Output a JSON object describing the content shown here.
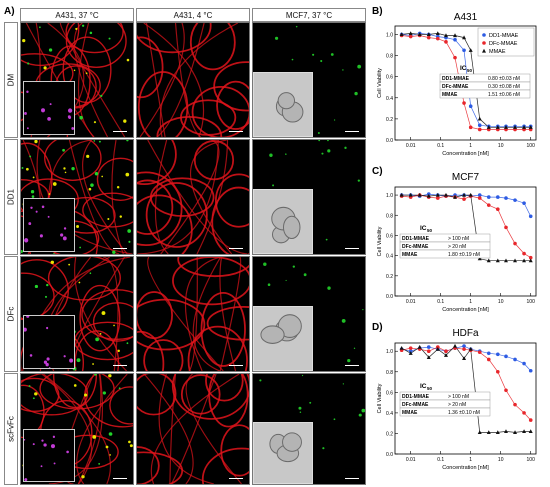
{
  "panel_a": {
    "label": "A)",
    "columns": [
      "A431, 37 °C",
      "A431, 4 °C",
      "MCF7, 37 °C"
    ],
    "rows": [
      "DM",
      "DD1",
      "DFc",
      "scFvFc"
    ]
  },
  "panel_labels": {
    "b": "B)",
    "c": "C)",
    "d": "D)"
  },
  "chart_data": [
    {
      "type": "scatter",
      "title": "A431",
      "xlabel": "Concentration [nM]",
      "ylabel": "Cell Viability",
      "xscale": "log",
      "xlim": [
        0.003,
        150
      ],
      "ylim": [
        0,
        1.08
      ],
      "xticks": [
        "0.01",
        "0.1",
        "1",
        "10",
        "100"
      ],
      "yticks": [
        "0.0",
        "0.2",
        "0.4",
        "0.6",
        "0.8",
        "1.0"
      ],
      "x": [
        0.005,
        0.01,
        0.02,
        0.04,
        0.08,
        0.15,
        0.3,
        0.6,
        1,
        2,
        4,
        8,
        15,
        30,
        60,
        100
      ],
      "legend_position": "top-right",
      "series": [
        {
          "name": "DD1-MMAE",
          "color": "#2d5be3",
          "marker": "circle",
          "values": [
            1.0,
            0.99,
            1.01,
            1.0,
            0.98,
            0.97,
            0.95,
            0.85,
            0.32,
            0.14,
            0.13,
            0.13,
            0.13,
            0.13,
            0.13,
            0.13
          ]
        },
        {
          "name": "DFc-MMAE",
          "color": "#e8262b",
          "marker": "circle",
          "values": [
            0.99,
            0.98,
            0.99,
            0.97,
            0.96,
            0.93,
            0.78,
            0.35,
            0.12,
            0.1,
            0.1,
            0.1,
            0.1,
            0.1,
            0.1,
            0.1
          ]
        },
        {
          "name": "MMAE",
          "color": "#111111",
          "marker": "triangle",
          "values": [
            1.0,
            1.01,
            1.0,
            1.0,
            1.01,
            0.99,
            0.99,
            0.97,
            0.85,
            0.2,
            0.12,
            0.12,
            0.12,
            0.12,
            0.12,
            0.12
          ]
        }
      ],
      "ic50_table": {
        "header": "IC",
        "header_sub": "50",
        "rows": [
          [
            "DD1-MMAE",
            "0.80 ±0.03 nM"
          ],
          [
            "DFc-MMAE",
            "0.30 ±0.08 nM"
          ],
          [
            "MMAE",
            "1.51 ±0.06 nM"
          ]
        ]
      }
    },
    {
      "type": "scatter",
      "title": "MCF7",
      "xlabel": "Concentration [nM]",
      "ylabel": "Cell Viability",
      "xscale": "log",
      "xlim": [
        0.003,
        150
      ],
      "ylim": [
        0,
        1.08
      ],
      "xticks": [
        "0.01",
        "0.1",
        "1",
        "10",
        "100"
      ],
      "yticks": [
        "0.0",
        "0.2",
        "0.4",
        "0.6",
        "0.8",
        "1.0"
      ],
      "x": [
        0.005,
        0.01,
        0.02,
        0.04,
        0.08,
        0.15,
        0.3,
        0.6,
        1,
        2,
        4,
        8,
        15,
        30,
        60,
        100
      ],
      "series": [
        {
          "name": "DD1-MMAE",
          "color": "#2d5be3",
          "marker": "circle",
          "values": [
            1.0,
            1.0,
            0.99,
            1.01,
            1.0,
            0.99,
            1.0,
            1.0,
            0.99,
            1.0,
            0.98,
            0.98,
            0.97,
            0.95,
            0.92,
            0.79
          ]
        },
        {
          "name": "DFc-MMAE",
          "color": "#e8262b",
          "marker": "circle",
          "values": [
            0.99,
            0.98,
            1.0,
            0.98,
            0.97,
            0.99,
            0.98,
            0.96,
            0.99,
            0.97,
            0.9,
            0.86,
            0.68,
            0.52,
            0.42,
            0.38
          ]
        },
        {
          "name": "MMAE",
          "color": "#111111",
          "marker": "triangle",
          "values": [
            1.0,
            1.0,
            1.0,
            0.99,
            1.0,
            1.0,
            0.98,
            1.0,
            1.0,
            0.37,
            0.35,
            0.35,
            0.35,
            0.35,
            0.35,
            0.35
          ]
        }
      ],
      "ic50_table": {
        "header": "IC",
        "header_sub": "50",
        "rows": [
          [
            "DD1-MMAE",
            "> 100 nM"
          ],
          [
            "DFc-MMAE",
            "> 20 nM"
          ],
          [
            "MMAE",
            "1.80 ±0.19 nM"
          ]
        ]
      }
    },
    {
      "type": "scatter",
      "title": "HDFa",
      "xlabel": "Concentration [nM]",
      "ylabel": "Cell Viability",
      "xscale": "log",
      "xlim": [
        0.003,
        150
      ],
      "ylim": [
        0,
        1.08
      ],
      "xticks": [
        "0.01",
        "0.1",
        "1",
        "10",
        "100"
      ],
      "yticks": [
        "0.0",
        "0.2",
        "0.4",
        "0.6",
        "0.8",
        "1.0"
      ],
      "x": [
        0.005,
        0.01,
        0.02,
        0.04,
        0.08,
        0.15,
        0.3,
        0.6,
        1,
        2,
        4,
        8,
        15,
        30,
        60,
        100
      ],
      "series": [
        {
          "name": "DD1-MMAE",
          "color": "#2d5be3",
          "marker": "circle",
          "values": [
            1.02,
            1.0,
            1.03,
            1.04,
            1.02,
            1.0,
            1.03,
            1.05,
            1.02,
            1.0,
            0.98,
            0.97,
            0.95,
            0.92,
            0.88,
            0.81
          ]
        },
        {
          "name": "DFc-MMAE",
          "color": "#e8262b",
          "marker": "circle",
          "values": [
            1.01,
            1.03,
            1.02,
            1.0,
            1.04,
            1.0,
            1.03,
            1.02,
            1.01,
            0.99,
            0.92,
            0.8,
            0.62,
            0.48,
            0.4,
            0.33
          ]
        },
        {
          "name": "MMAE",
          "color": "#111111",
          "marker": "triangle",
          "values": [
            1.03,
            0.98,
            1.04,
            0.94,
            1.02,
            0.96,
            1.05,
            0.93,
            1.02,
            0.21,
            0.21,
            0.21,
            0.22,
            0.21,
            0.22,
            0.22
          ]
        }
      ],
      "ic50_table": {
        "header": "IC",
        "header_sub": "50",
        "rows": [
          [
            "DD1-MMAE",
            "> 100 nM"
          ],
          [
            "DFc-MMAE",
            "> 20 nM"
          ],
          [
            "MMAE",
            "1.36 ±0.10 nM"
          ]
        ]
      }
    }
  ],
  "colors": {
    "membrane": "#e0141b",
    "yellow": "#e8e600",
    "green": "#22d42a",
    "magenta": "#c23bd6",
    "brightfield": "#c8c8c8"
  }
}
